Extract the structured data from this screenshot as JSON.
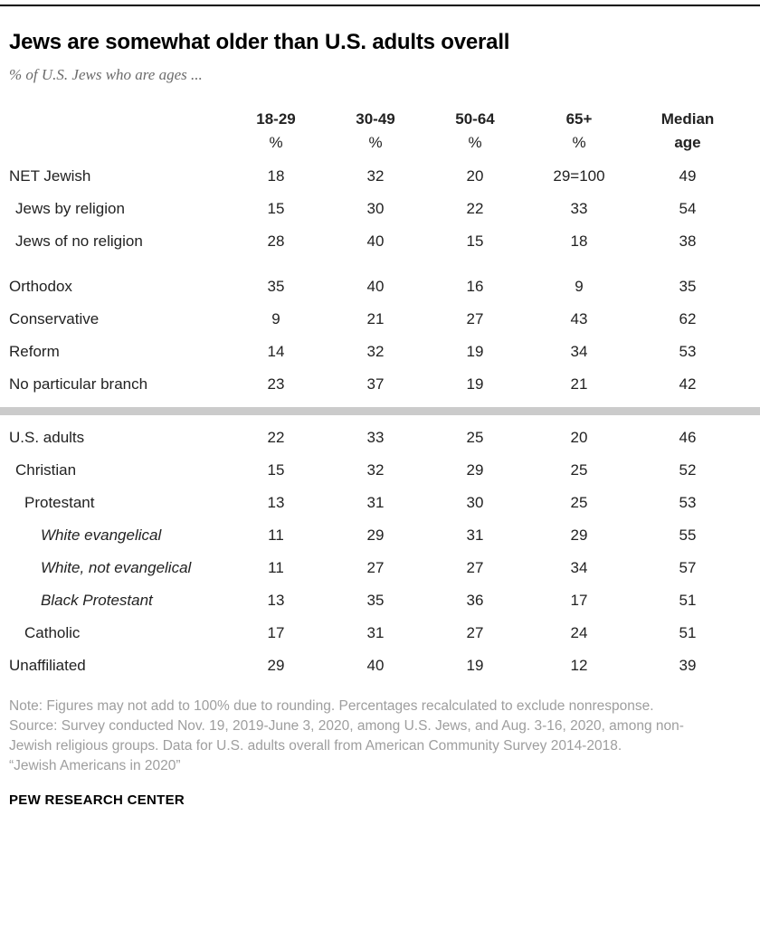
{
  "header": {
    "title": "Jews are somewhat older than U.S. adults overall",
    "subtitle": "% of U.S. Jews who are ages ..."
  },
  "chart_data": {
    "type": "table",
    "title": "Jews are somewhat older than U.S. adults overall",
    "subtitle": "% of U.S. Jews who are ages ...",
    "columns": [
      {
        "label": "18-29",
        "unit": "%"
      },
      {
        "label": "30-49",
        "unit": "%"
      },
      {
        "label": "50-64",
        "unit": "%"
      },
      {
        "label": "65+",
        "unit": "%"
      },
      {
        "label": "Median age",
        "unit": ""
      }
    ],
    "rows": [
      {
        "label": "NET Jewish",
        "indent": 0,
        "italic": false,
        "values": [
          "18",
          "32",
          "20",
          "29=100",
          "49"
        ]
      },
      {
        "label": "Jews by religion",
        "indent": 1,
        "italic": false,
        "values": [
          "15",
          "30",
          "22",
          "33",
          "54"
        ]
      },
      {
        "label": "Jews of no religion",
        "indent": 1,
        "italic": false,
        "values": [
          "28",
          "40",
          "15",
          "18",
          "38"
        ]
      },
      {
        "label": "Orthodox",
        "indent": 0,
        "italic": false,
        "spacer_before": true,
        "values": [
          "35",
          "40",
          "16",
          "9",
          "35"
        ]
      },
      {
        "label": "Conservative",
        "indent": 0,
        "italic": false,
        "values": [
          "9",
          "21",
          "27",
          "43",
          "62"
        ]
      },
      {
        "label": "Reform",
        "indent": 0,
        "italic": false,
        "values": [
          "14",
          "32",
          "19",
          "34",
          "53"
        ]
      },
      {
        "label": "No particular branch",
        "indent": 0,
        "italic": false,
        "values": [
          "23",
          "37",
          "19",
          "21",
          "42"
        ]
      },
      {
        "label": "U.S. adults",
        "indent": 0,
        "italic": false,
        "divider_before": true,
        "values": [
          "22",
          "33",
          "25",
          "20",
          "46"
        ]
      },
      {
        "label": "Christian",
        "indent": 1,
        "italic": false,
        "values": [
          "15",
          "32",
          "29",
          "25",
          "52"
        ]
      },
      {
        "label": "Protestant",
        "indent": 2,
        "italic": false,
        "values": [
          "13",
          "31",
          "30",
          "25",
          "53"
        ]
      },
      {
        "label": "White evangelical",
        "indent": 3,
        "italic": true,
        "values": [
          "11",
          "29",
          "31",
          "29",
          "55"
        ]
      },
      {
        "label": "White, not evangelical",
        "indent": 3,
        "italic": true,
        "values": [
          "11",
          "27",
          "27",
          "34",
          "57"
        ]
      },
      {
        "label": "Black Protestant",
        "indent": 3,
        "italic": true,
        "values": [
          "13",
          "35",
          "36",
          "17",
          "51"
        ]
      },
      {
        "label": "Catholic",
        "indent": 2,
        "italic": false,
        "values": [
          "17",
          "31",
          "27",
          "24",
          "51"
        ]
      },
      {
        "label": "Unaffiliated",
        "indent": 0,
        "italic": false,
        "values": [
          "29",
          "40",
          "19",
          "12",
          "39"
        ]
      }
    ]
  },
  "footnotes": {
    "note": "Note: Figures may not add to 100% due to rounding. Percentages recalculated to exclude nonresponse.",
    "source": "Source: Survey conducted Nov. 19, 2019-June 3, 2020, among U.S. Jews, and Aug. 3-16, 2020, among non-Jewish religious groups. Data for U.S. adults overall from American Community Survey 2014-2018.",
    "citation": "“Jewish Americans in 2020”"
  },
  "footer": {
    "brand": "PEW RESEARCH CENTER"
  }
}
